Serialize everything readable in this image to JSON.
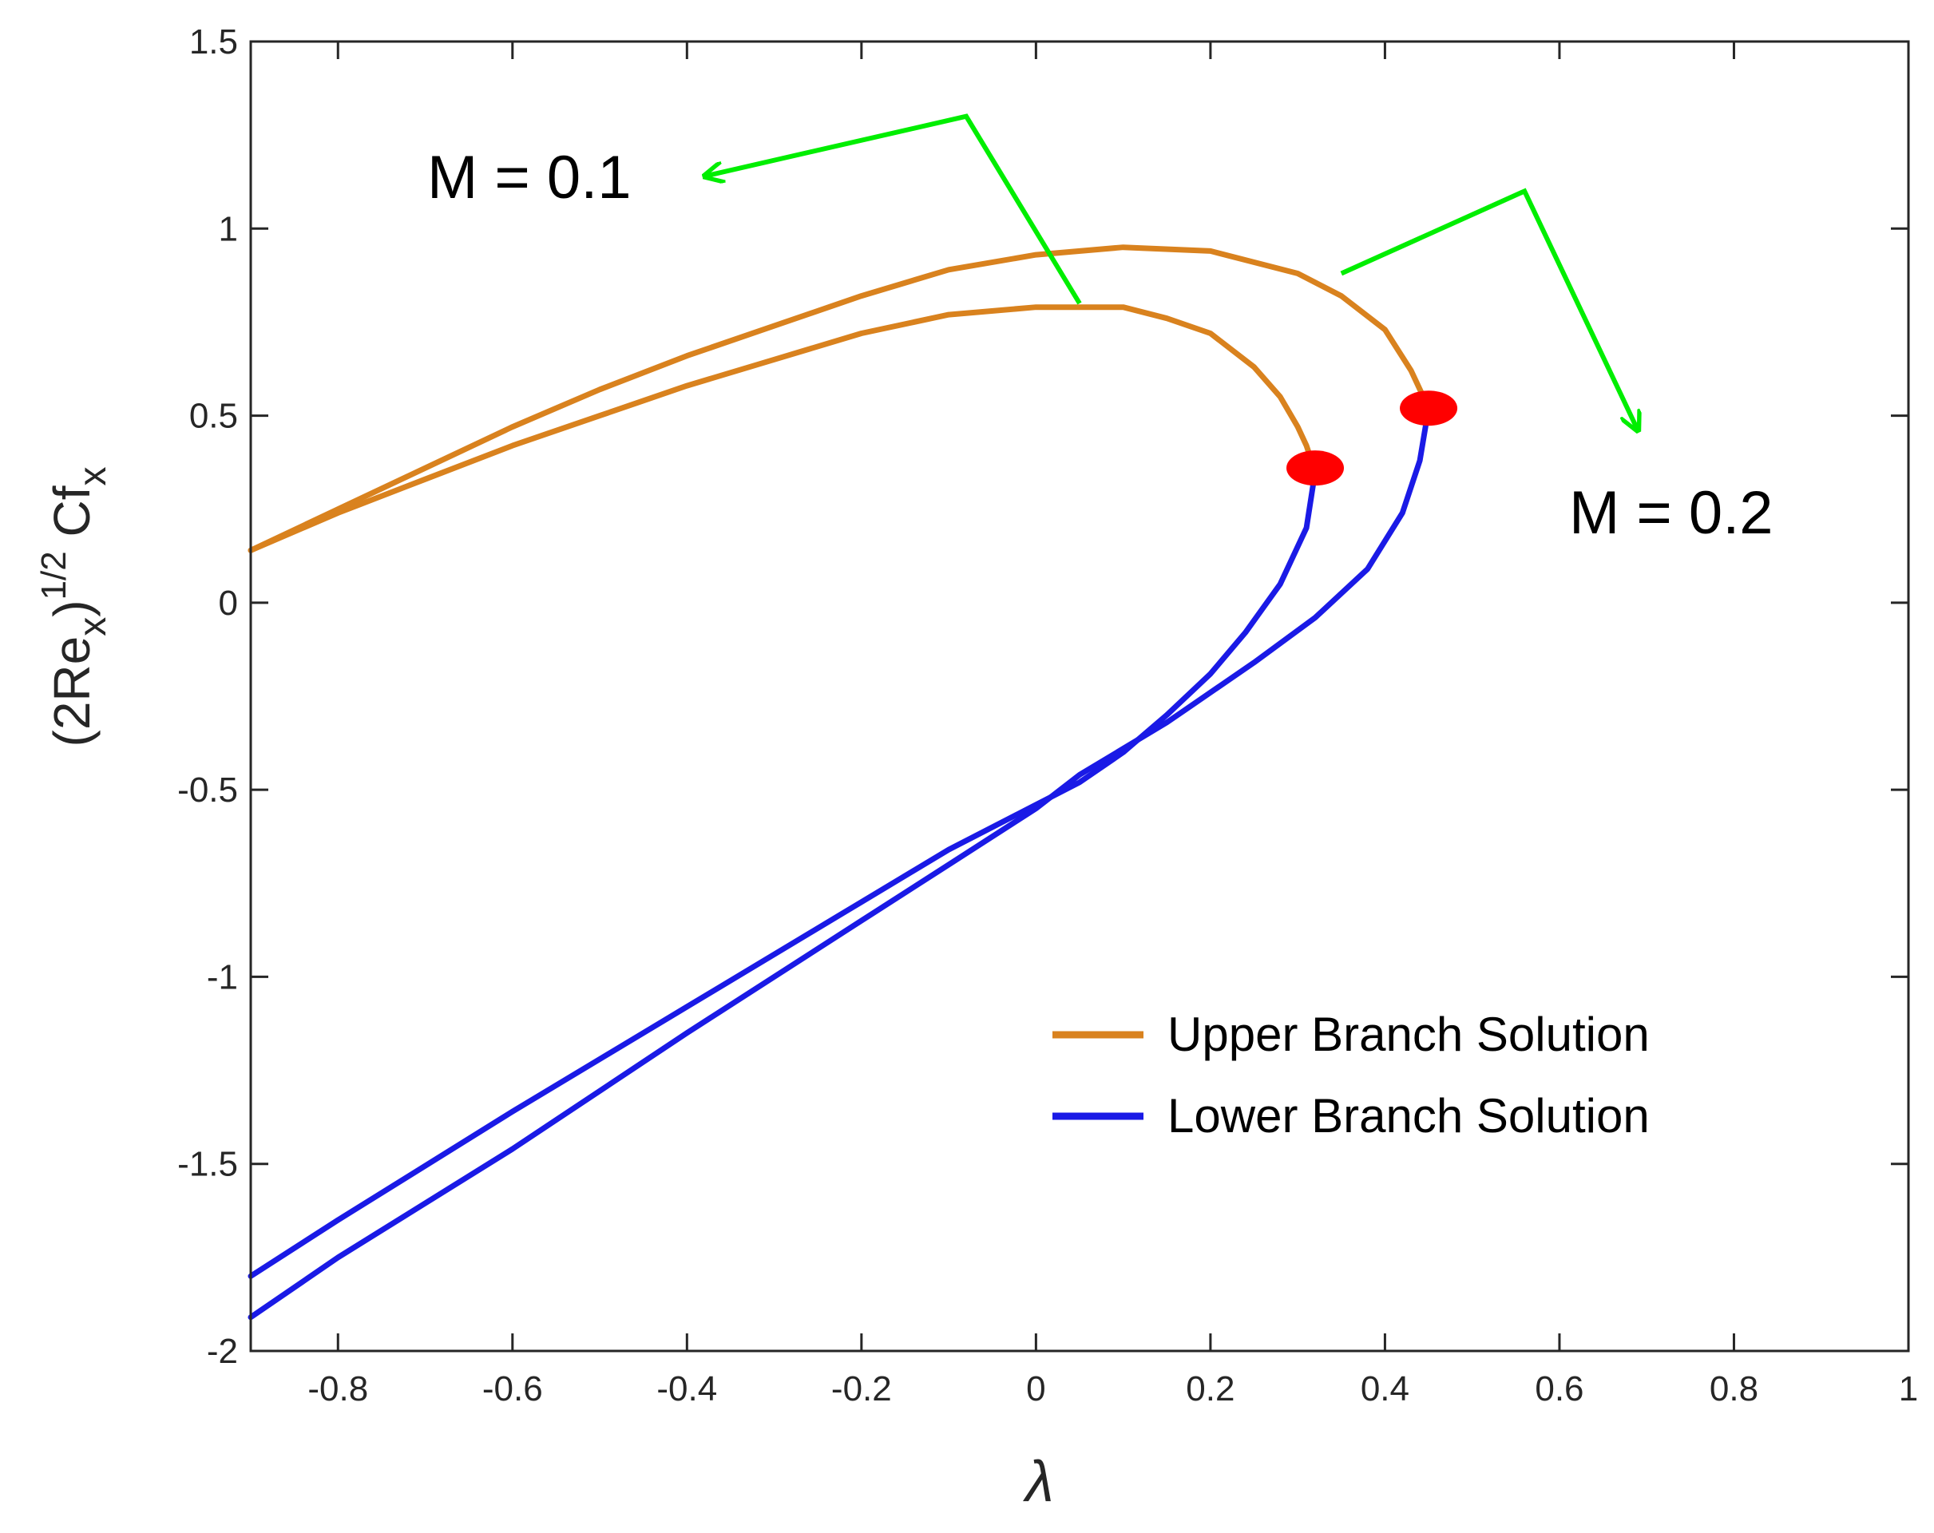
{
  "chart_data": {
    "type": "line",
    "xlabel": "λ",
    "ylabel": {
      "prefix": "(2Re",
      "sub1": "x",
      "mid": ")",
      "sup": "1/2",
      "suffix": " Cf",
      "sub2": "x"
    },
    "xlim": [
      -0.9,
      1.0
    ],
    "ylim": [
      -2.0,
      1.5
    ],
    "xticks": [
      -0.8,
      -0.6,
      -0.4,
      -0.2,
      0,
      0.2,
      0.4,
      0.6,
      0.8,
      1
    ],
    "xtick_labels": [
      "-0.8",
      "-0.6",
      "-0.4",
      "-0.2",
      "0",
      "0.2",
      "0.4",
      "0.6",
      "0.8",
      "1"
    ],
    "yticks": [
      -2,
      -1.5,
      -1,
      -0.5,
      0,
      0.5,
      1,
      1.5
    ],
    "ytick_labels": [
      "-2",
      "-1.5",
      "-1",
      "-0.5",
      "0",
      "0.5",
      "1",
      "1.5"
    ],
    "grid": false,
    "legend": {
      "placement": "bottom-right",
      "entries": [
        {
          "label": "Upper Branch Solution",
          "color": "#d9821e"
        },
        {
          "label": "Lower Branch Solution",
          "color": "#1a1ae6"
        }
      ]
    },
    "series": [
      {
        "group": "M = 0.1",
        "branch": "upper",
        "color": "#d9821e",
        "x": [
          -0.9,
          -0.8,
          -0.7,
          -0.6,
          -0.5,
          -0.4,
          -0.3,
          -0.2,
          -0.1,
          0.0,
          0.1,
          0.15,
          0.2,
          0.25,
          0.28,
          0.3,
          0.31,
          0.32
        ],
        "y": [
          0.14,
          0.24,
          0.33,
          0.42,
          0.5,
          0.58,
          0.65,
          0.72,
          0.77,
          0.79,
          0.79,
          0.76,
          0.72,
          0.63,
          0.55,
          0.47,
          0.42,
          0.35
        ]
      },
      {
        "group": "M = 0.1",
        "branch": "lower",
        "color": "#1a1ae6",
        "x": [
          0.32,
          0.31,
          0.28,
          0.24,
          0.2,
          0.15,
          0.1,
          0.05,
          0.0,
          -0.1,
          -0.2,
          -0.4,
          -0.6,
          -0.8,
          -0.9
        ],
        "y": [
          0.35,
          0.2,
          0.05,
          -0.08,
          -0.19,
          -0.3,
          -0.4,
          -0.48,
          -0.54,
          -0.66,
          -0.8,
          -1.08,
          -1.36,
          -1.65,
          -1.8
        ]
      },
      {
        "group": "M = 0.2",
        "branch": "upper",
        "color": "#d9821e",
        "x": [
          -0.9,
          -0.8,
          -0.7,
          -0.6,
          -0.5,
          -0.4,
          -0.3,
          -0.2,
          -0.1,
          0.0,
          0.1,
          0.2,
          0.3,
          0.35,
          0.4,
          0.43,
          0.45
        ],
        "y": [
          0.14,
          0.25,
          0.36,
          0.47,
          0.57,
          0.66,
          0.74,
          0.82,
          0.89,
          0.93,
          0.95,
          0.94,
          0.88,
          0.82,
          0.73,
          0.62,
          0.52
        ]
      },
      {
        "group": "M = 0.2",
        "branch": "lower",
        "color": "#1a1ae6",
        "x": [
          0.45,
          0.44,
          0.42,
          0.38,
          0.32,
          0.25,
          0.15,
          0.05,
          0.0,
          -0.1,
          -0.2,
          -0.4,
          -0.6,
          -0.8,
          -0.9
        ],
        "y": [
          0.52,
          0.38,
          0.24,
          0.09,
          -0.04,
          -0.16,
          -0.32,
          -0.46,
          -0.55,
          -0.7,
          -0.85,
          -1.15,
          -1.46,
          -1.75,
          -1.91
        ]
      }
    ],
    "markers": [
      {
        "name": "M = 0.1 turning point",
        "x": 0.32,
        "y": 0.36,
        "color": "#ff0000"
      },
      {
        "name": "M = 0.2 turning point",
        "x": 0.45,
        "y": 0.52,
        "color": "#ff0000"
      }
    ],
    "annotations": [
      {
        "text": "M = 0.1",
        "color": "#00ee00",
        "arrow_path": [
          [
            0.05,
            0.8
          ],
          [
            -0.08,
            1.3
          ],
          [
            -0.38,
            1.14
          ]
        ]
      },
      {
        "text": "M = 0.2",
        "color": "#00ee00",
        "arrow_path": [
          [
            0.35,
            0.88
          ],
          [
            0.56,
            1.1
          ],
          [
            0.69,
            0.46
          ]
        ]
      }
    ]
  }
}
